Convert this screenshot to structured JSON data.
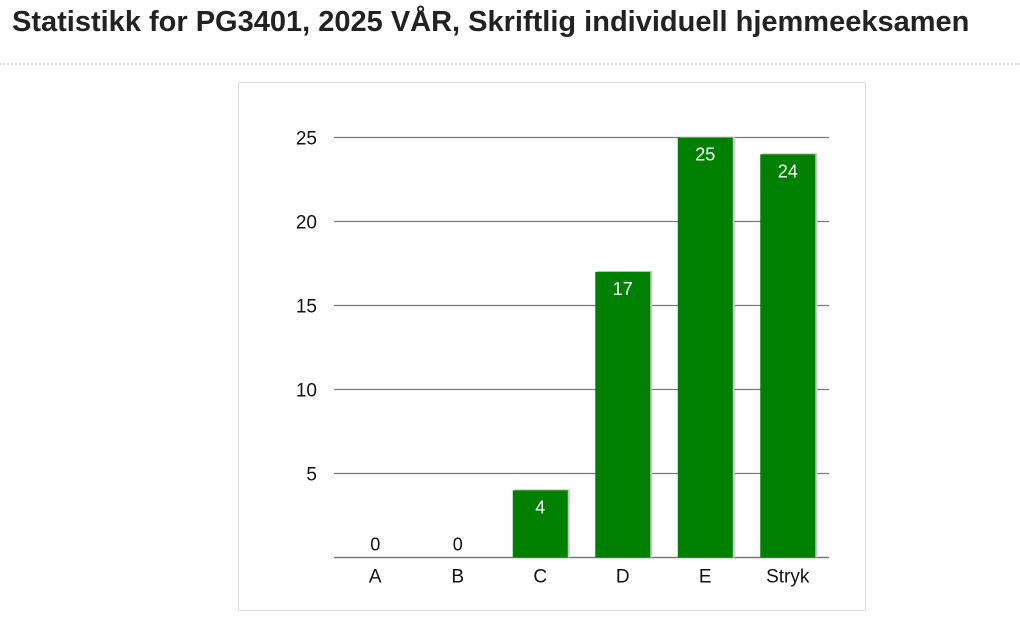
{
  "page": {
    "title": "Statistikk for PG3401, 2025 VÅR, Skriftlig individuell hjemmeeksamen"
  },
  "colors": {
    "bar": "#008000",
    "bar_shadow": "#c8c8c8",
    "gridline": "#7a7a7a",
    "inside_label": "#ffffff",
    "outside_label": "#111111"
  },
  "chart_data": {
    "type": "bar",
    "categories": [
      "A",
      "B",
      "C",
      "D",
      "E",
      "Stryk"
    ],
    "values": [
      0,
      0,
      4,
      17,
      25,
      24
    ],
    "data_labels": [
      "0",
      "0",
      "4",
      "17",
      "25",
      "24"
    ],
    "ylim": [
      0,
      25
    ],
    "yticks": [
      5,
      10,
      15,
      20,
      25
    ],
    "ytick_labels": [
      "5",
      "10",
      "15",
      "20",
      "25"
    ],
    "grid": true,
    "legend": "none"
  }
}
